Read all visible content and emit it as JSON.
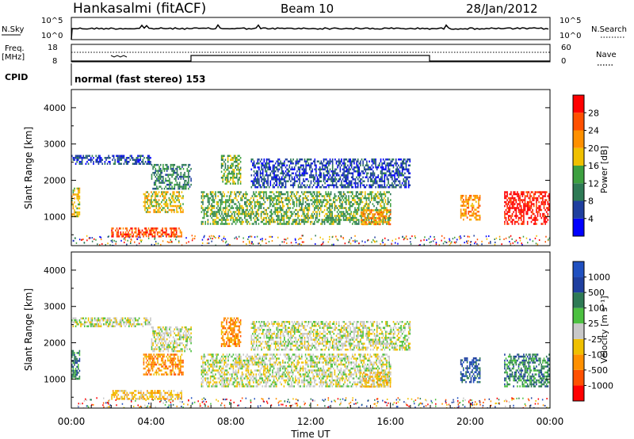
{
  "header": {
    "station": "Hankasalmi (fitACF)",
    "beam": "Beam 10",
    "date": "28/Jan/2012"
  },
  "panels": {
    "nsky": {
      "label": "N.Sky",
      "left_ticks": [
        "10^5",
        "10^0"
      ],
      "right_ticks": [
        "10^5",
        "10^0"
      ],
      "right_label": "N.Search"
    },
    "freq": {
      "label_line1": "Freq.",
      "label_line2": "[MHz]",
      "left_ticks": [
        "18",
        "8"
      ],
      "right_ticks": [
        "60",
        "0"
      ],
      "right_label": "Nave"
    },
    "cpid": {
      "label": "CPID",
      "value": "normal (fast stereo) 153"
    }
  },
  "colors": {
    "power": [
      "#0000ff",
      "#1f3f9f",
      "#2e7a55",
      "#3da040",
      "#f0c000",
      "#ff9000",
      "#ff5000",
      "#ff0000"
    ],
    "velocity": [
      "#ff0000",
      "#ff5000",
      "#ff9000",
      "#f0c000",
      "#c8c8c8",
      "#4cc040",
      "#2e7a55",
      "#1f3f9f",
      "#2050c0"
    ]
  },
  "chart_data": [
    {
      "type": "heatmap",
      "name": "power",
      "ylabel": "Slant Range [km]",
      "ylim": [
        200,
        4500
      ],
      "yticks": [
        "4000",
        "3000",
        "2000",
        "1000"
      ],
      "colorbar_label": "Power [dB]",
      "colorbar_ticks": [
        "28",
        "24",
        "20",
        "16",
        "12",
        "8",
        "4"
      ],
      "regions": [
        {
          "x0": 0.0,
          "x1": 4.0,
          "y0": 2450,
          "y1": 2700,
          "level": 1
        },
        {
          "x0": 4.0,
          "x1": 6.0,
          "y0": 1750,
          "y1": 2450,
          "level": 2
        },
        {
          "x0": 0.0,
          "x1": 0.4,
          "y0": 1000,
          "y1": 1800,
          "level": 4
        },
        {
          "x0": 3.6,
          "x1": 5.6,
          "y0": 1150,
          "y1": 1700,
          "level": 4
        },
        {
          "x0": 2.0,
          "x1": 5.5,
          "y0": 450,
          "y1": 700,
          "level": 6
        },
        {
          "x0": 6.5,
          "x1": 16.0,
          "y0": 800,
          "y1": 1700,
          "level": 3
        },
        {
          "x0": 7.5,
          "x1": 8.5,
          "y0": 1900,
          "y1": 2700,
          "level": 3
        },
        {
          "x0": 9.0,
          "x1": 17.0,
          "y0": 1800,
          "y1": 2600,
          "level": 1
        },
        {
          "x0": 14.5,
          "x1": 16.0,
          "y0": 800,
          "y1": 1200,
          "level": 5
        },
        {
          "x0": 19.5,
          "x1": 20.5,
          "y0": 900,
          "y1": 1600,
          "level": 5
        },
        {
          "x0": 21.7,
          "x1": 24.0,
          "y0": 800,
          "y1": 1700,
          "level": 7
        }
      ]
    },
    {
      "type": "heatmap",
      "name": "velocity",
      "xlabel": "Time UT",
      "ylabel": "Slant Range [km]",
      "ylim": [
        200,
        4500
      ],
      "yticks": [
        "4000",
        "3000",
        "2000",
        "1000"
      ],
      "xticks": [
        "00:00",
        "04:00",
        "08:00",
        "12:00",
        "16:00",
        "20:00",
        "00:00"
      ],
      "colorbar_label": "Velocity [m s⁻¹]",
      "colorbar_ticks": [
        "1000",
        "500",
        "100",
        "25",
        "-25",
        "-100",
        "-500",
        "-1000"
      ],
      "regions": [
        {
          "x0": 0.0,
          "x1": 4.0,
          "y0": 2450,
          "y1": 2700,
          "level": 4
        },
        {
          "x0": 4.0,
          "x1": 6.0,
          "y0": 1750,
          "y1": 2450,
          "level": 4
        },
        {
          "x0": 0.0,
          "x1": 0.4,
          "y0": 1000,
          "y1": 1800,
          "level": 6
        },
        {
          "x0": 3.6,
          "x1": 5.6,
          "y0": 1150,
          "y1": 1700,
          "level": 2
        },
        {
          "x0": 2.0,
          "x1": 5.5,
          "y0": 450,
          "y1": 700,
          "level": 3
        },
        {
          "x0": 6.5,
          "x1": 16.0,
          "y0": 800,
          "y1": 1700,
          "level": 4
        },
        {
          "x0": 7.5,
          "x1": 8.5,
          "y0": 1900,
          "y1": 2700,
          "level": 2
        },
        {
          "x0": 9.0,
          "x1": 17.0,
          "y0": 1800,
          "y1": 2600,
          "level": 4
        },
        {
          "x0": 14.5,
          "x1": 16.0,
          "y0": 800,
          "y1": 1200,
          "level": 3
        },
        {
          "x0": 19.5,
          "x1": 20.5,
          "y0": 900,
          "y1": 1600,
          "level": 7
        },
        {
          "x0": 21.7,
          "x1": 24.0,
          "y0": 800,
          "y1": 1700,
          "level": 6
        }
      ]
    }
  ]
}
